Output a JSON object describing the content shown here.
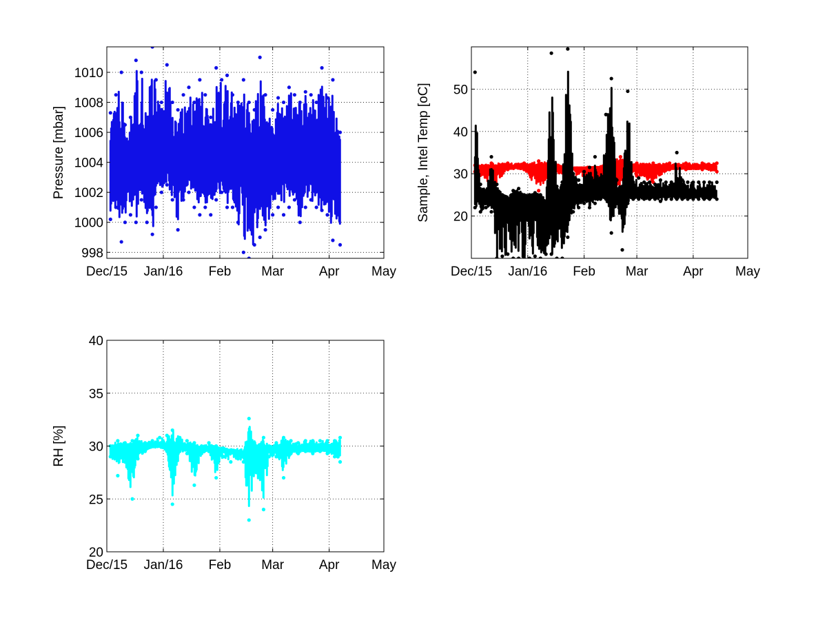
{
  "figure": {
    "background": "#ffffff"
  },
  "chart_data": [
    {
      "type": "scatter",
      "title": "",
      "xlabel": "",
      "ylabel": "Pressure [mbar]",
      "x_ticks": [
        "Dec/15",
        "Jan/16",
        "Feb",
        "Mar",
        "Apr",
        "May"
      ],
      "x_tick_dates": [
        "2015-12-01",
        "2016-01-01",
        "2016-02-01",
        "2016-03-01",
        "2016-04-01",
        "2016-05-01"
      ],
      "xlim": [
        "2015-12-01",
        "2016-05-01"
      ],
      "y_ticks": [
        998,
        1000,
        1002,
        1004,
        1006,
        1008,
        1010
      ],
      "ylim": [
        997.6,
        1011.7
      ],
      "grid": true,
      "series": [
        {
          "color": "#1010e6",
          "marker": "dot",
          "date_range": [
            "2015-12-03",
            "2016-04-07"
          ],
          "baseline": 1004.0,
          "x": [
            "2015-12-03",
            "2015-12-06",
            "2015-12-09",
            "2015-12-11",
            "2015-12-14",
            "2015-12-17",
            "2015-12-20",
            "2015-12-23",
            "2015-12-26",
            "2015-12-28",
            "2015-12-31",
            "2016-01-03",
            "2016-01-06",
            "2016-01-09",
            "2016-01-12",
            "2016-01-15",
            "2016-01-18",
            "2016-01-21",
            "2016-01-24",
            "2016-01-27",
            "2016-01-30",
            "2016-02-02",
            "2016-02-05",
            "2016-02-08",
            "2016-02-11",
            "2016-02-14",
            "2016-02-17",
            "2016-02-20",
            "2016-02-23",
            "2016-02-26",
            "2016-03-01",
            "2016-03-04",
            "2016-03-07",
            "2016-03-10",
            "2016-03-13",
            "2016-03-16",
            "2016-03-19",
            "2016-03-22",
            "2016-03-25",
            "2016-03-28",
            "2016-03-31",
            "2016-04-03",
            "2016-04-07"
          ],
          "max": [
            1007.3,
            1008.5,
            1010.0,
            1006.5,
            1007.0,
            1010.8,
            1010.0,
            1007.0,
            1011.7,
            1009.5,
            1008.0,
            1010.5,
            1008.0,
            1007.5,
            1008.5,
            1009.0,
            1008.0,
            1009.5,
            1008.5,
            1007.0,
            1010.3,
            1009.5,
            1009.8,
            1008.5,
            1008.0,
            1009.5,
            1008.0,
            1007.5,
            1011.0,
            1008.5,
            1007.5,
            1008.3,
            1008.0,
            1009.0,
            1008.5,
            1008.0,
            1008.7,
            1008.5,
            1008.0,
            1010.3,
            1008.3,
            1009.5,
            1006.0
          ],
          "min": [
            1000.2,
            1001.0,
            998.7,
            1000.0,
            1000.5,
            1000.0,
            1001.5,
            1000.0,
            999.2,
            1001.0,
            1002.0,
            1002.5,
            1001.5,
            999.5,
            1001.5,
            1002.0,
            1001.0,
            1000.5,
            1001.0,
            1000.5,
            1001.5,
            1002.0,
            1001.0,
            1001.0,
            1000.0,
            998.0,
            997.6,
            998.5,
            999.0,
            999.5,
            1000.5,
            1001.0,
            1000.5,
            1001.0,
            1001.5,
            1000.0,
            1001.0,
            1001.5,
            1001.0,
            1000.8,
            1000.5,
            998.8,
            998.5
          ]
        }
      ]
    },
    {
      "type": "scatter",
      "title": "",
      "xlabel": "",
      "ylabel": "Sample, Intel Temp [oC]",
      "x_ticks": [
        "Dec/15",
        "Jan/16",
        "Feb",
        "Mar",
        "Apr",
        "May"
      ],
      "x_tick_dates": [
        "2015-12-01",
        "2016-01-01",
        "2016-02-01",
        "2016-03-01",
        "2016-04-01",
        "2016-05-01"
      ],
      "xlim": [
        "2015-12-01",
        "2016-05-01"
      ],
      "y_ticks": [
        20,
        30,
        40,
        50
      ],
      "ylim": [
        10,
        60
      ],
      "grid": true,
      "series": [
        {
          "color": "#ff0000",
          "marker": "dot",
          "date_range": [
            "2015-12-03",
            "2016-04-14"
          ],
          "baseline": 31.5,
          "x": [
            "2015-12-03",
            "2015-12-12",
            "2015-12-21",
            "2015-12-30",
            "2016-01-07",
            "2016-01-16",
            "2016-01-25",
            "2016-02-03",
            "2016-02-12",
            "2016-02-21",
            "2016-03-01",
            "2016-03-10",
            "2016-03-19",
            "2016-03-28",
            "2016-04-06",
            "2016-04-14"
          ],
          "max": [
            32.0,
            32.5,
            32.5,
            32.5,
            33.0,
            32.5,
            31.5,
            31.5,
            32.0,
            34.0,
            32.5,
            32.5,
            32.5,
            32.5,
            32.5,
            32.5
          ],
          "min": [
            30.5,
            26.5,
            31.0,
            31.0,
            26.0,
            30.0,
            30.0,
            29.0,
            26.0,
            26.0,
            29.5,
            28.0,
            31.0,
            31.0,
            31.0,
            30.5
          ]
        },
        {
          "color": "#000000",
          "marker": "dot",
          "date_range": [
            "2015-12-03",
            "2016-04-14"
          ],
          "baseline": 25.0,
          "x": [
            "2015-12-03",
            "2015-12-06",
            "2015-12-09",
            "2015-12-12",
            "2015-12-15",
            "2015-12-18",
            "2015-12-21",
            "2015-12-24",
            "2015-12-27",
            "2015-12-30",
            "2016-01-02",
            "2016-01-05",
            "2016-01-08",
            "2016-01-11",
            "2016-01-14",
            "2016-01-17",
            "2016-01-20",
            "2016-01-23",
            "2016-01-26",
            "2016-01-29",
            "2016-02-01",
            "2016-02-04",
            "2016-02-07",
            "2016-02-10",
            "2016-02-13",
            "2016-02-16",
            "2016-02-19",
            "2016-02-22",
            "2016-02-25",
            "2016-02-28",
            "2016-03-02",
            "2016-03-05",
            "2016-03-08",
            "2016-03-11",
            "2016-03-14",
            "2016-03-17",
            "2016-03-20",
            "2016-03-23",
            "2016-03-26",
            "2016-03-29",
            "2016-04-01",
            "2016-04-04",
            "2016-04-07",
            "2016-04-10",
            "2016-04-14"
          ],
          "max": [
            54.0,
            27.5,
            26.0,
            34.0,
            27.5,
            25.0,
            24.0,
            26.0,
            26.5,
            25.0,
            25.0,
            25.5,
            25.0,
            22.5,
            58.5,
            27.0,
            28.0,
            59.5,
            30.0,
            28.5,
            30.5,
            31.5,
            34.0,
            29.0,
            44.0,
            52.5,
            28.5,
            27.0,
            49.5,
            28.0,
            29.0,
            28.0,
            28.0,
            27.5,
            28.5,
            28.0,
            28.0,
            35.0,
            28.5,
            28.0,
            28.0,
            28.0,
            28.0,
            28.0,
            28.0
          ],
          "min": [
            22.0,
            21.0,
            22.0,
            21.0,
            10.0,
            10.5,
            11.0,
            10.0,
            10.0,
            10.0,
            10.0,
            10.5,
            10.0,
            11.0,
            11.0,
            10.0,
            10.0,
            15.0,
            21.0,
            22.0,
            23.0,
            22.0,
            23.0,
            24.0,
            24.0,
            16.0,
            23.0,
            12.0,
            23.0,
            24.0,
            24.0,
            24.0,
            24.0,
            24.0,
            23.5,
            24.0,
            24.0,
            24.0,
            24.0,
            24.0,
            24.0,
            24.0,
            24.0,
            24.0,
            24.0
          ]
        }
      ]
    },
    {
      "type": "scatter",
      "title": "",
      "xlabel": "",
      "ylabel": "RH [%]",
      "x_ticks": [
        "Dec/15",
        "Jan/16",
        "Feb",
        "Mar",
        "Apr",
        "May"
      ],
      "x_tick_dates": [
        "2015-12-01",
        "2016-01-01",
        "2016-02-01",
        "2016-03-01",
        "2016-04-01",
        "2016-05-01"
      ],
      "xlim": [
        "2015-12-01",
        "2016-05-01"
      ],
      "y_ticks": [
        20,
        25,
        30,
        35,
        40
      ],
      "ylim": [
        20,
        40
      ],
      "grid": true,
      "series": [
        {
          "color": "#00ffff",
          "marker": "dot",
          "date_range": [
            "2015-12-03",
            "2016-04-07"
          ],
          "baseline": 29.8,
          "x": [
            "2015-12-03",
            "2015-12-07",
            "2015-12-11",
            "2015-12-15",
            "2015-12-18",
            "2015-12-22",
            "2015-12-26",
            "2015-12-30",
            "2016-01-03",
            "2016-01-06",
            "2016-01-10",
            "2016-01-14",
            "2016-01-18",
            "2016-01-22",
            "2016-01-26",
            "2016-01-30",
            "2016-02-03",
            "2016-02-07",
            "2016-02-11",
            "2016-02-14",
            "2016-02-17",
            "2016-02-21",
            "2016-02-25",
            "2016-02-28",
            "2016-03-03",
            "2016-03-07",
            "2016-03-11",
            "2016-03-15",
            "2016-03-19",
            "2016-03-23",
            "2016-03-27",
            "2016-03-31",
            "2016-04-04",
            "2016-04-07"
          ],
          "max": [
            30.0,
            30.5,
            30.3,
            30.5,
            31.0,
            30.3,
            30.5,
            30.8,
            31.0,
            31.5,
            30.8,
            30.5,
            30.3,
            30.0,
            30.3,
            30.0,
            29.8,
            29.5,
            29.5,
            29.3,
            32.6,
            30.0,
            30.8,
            30.0,
            30.3,
            30.8,
            30.5,
            30.3,
            30.5,
            30.5,
            30.5,
            30.5,
            30.5,
            30.8
          ],
          "min": [
            29.0,
            27.2,
            28.5,
            25.0,
            28.8,
            29.5,
            30.0,
            30.0,
            29.5,
            24.5,
            29.5,
            29.3,
            26.3,
            29.3,
            29.5,
            27.0,
            29.0,
            28.5,
            28.8,
            28.5,
            23.0,
            27.5,
            24.0,
            29.0,
            29.0,
            27.0,
            29.3,
            29.3,
            29.5,
            29.3,
            29.5,
            29.3,
            29.0,
            28.5
          ]
        }
      ]
    }
  ]
}
